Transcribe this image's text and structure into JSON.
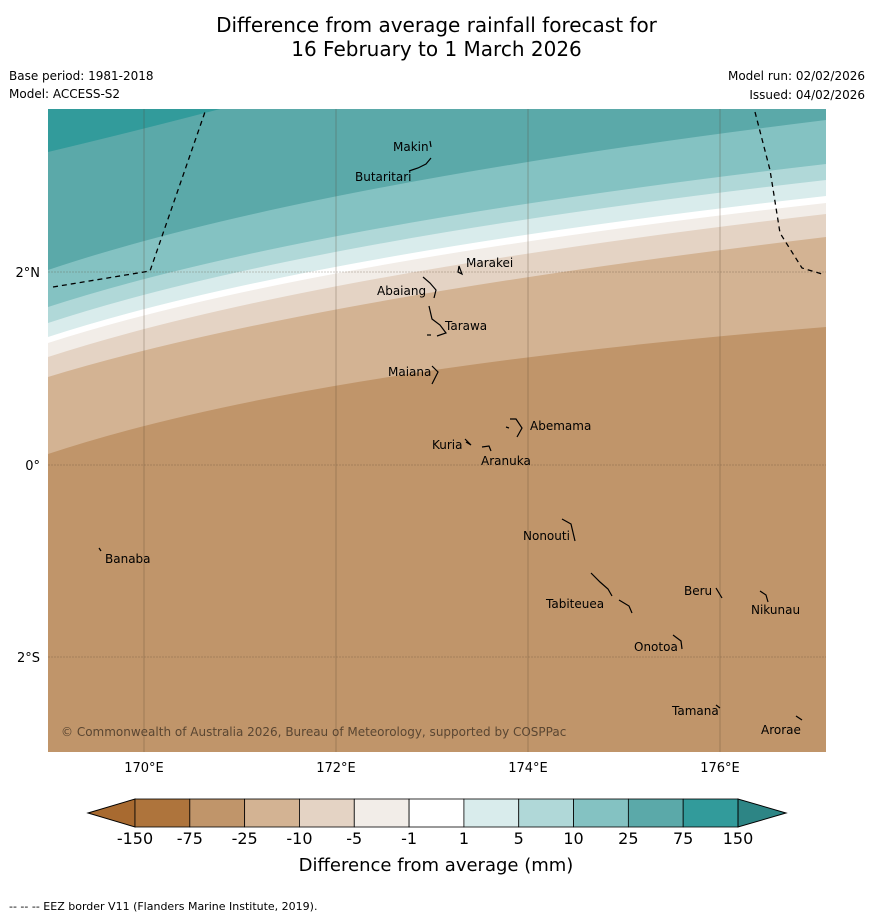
{
  "title_line1": "Difference from average rainfall forecast for",
  "title_line2": "16 February to 1 March 2026",
  "base_period": "Base period: 1981-2018",
  "model": "Model: ACCESS-S2",
  "model_run": "Model run: 02/02/2026",
  "issued": "Issued: 04/02/2026",
  "copyright": "© Commonwealth of Australia 2026, Bureau of Meteorology, supported by COSPPac",
  "map": {
    "lon_labels": [
      "170°E",
      "172°E",
      "174°E",
      "176°E"
    ],
    "lat_labels": [
      "2°N",
      "0°",
      "2°S"
    ],
    "places": [
      "Makin",
      "Butaritari",
      "Marakei",
      "Abaiang",
      "Tarawa",
      "Maiana",
      "Abemama",
      "Kuria",
      "Aranuka",
      "Nonouti",
      "Banaba",
      "Beru",
      "Nikunau",
      "Tabiteuea",
      "Onotoa",
      "Tamana",
      "Arorae"
    ]
  },
  "colorbar": {
    "ticks": [
      "-150",
      "-75",
      "-25",
      "-10",
      "-5",
      "-1",
      "1",
      "5",
      "10",
      "25",
      "75",
      "150"
    ],
    "colors": [
      "#ae743c",
      "#c0956a",
      "#d3b393",
      "#e4d3c4",
      "#f2ede8",
      "#ffffff",
      "#d9ecec",
      "#b0d8d8",
      "#84c2c2",
      "#5ba9a9",
      "#329b9b"
    ],
    "under_color": "#a86a30",
    "over_color": "#2d8585",
    "label": "Difference from average (mm)"
  },
  "footnote": "--  --  -- EEZ border V11 (Flanders Marine Institute, 2019)."
}
